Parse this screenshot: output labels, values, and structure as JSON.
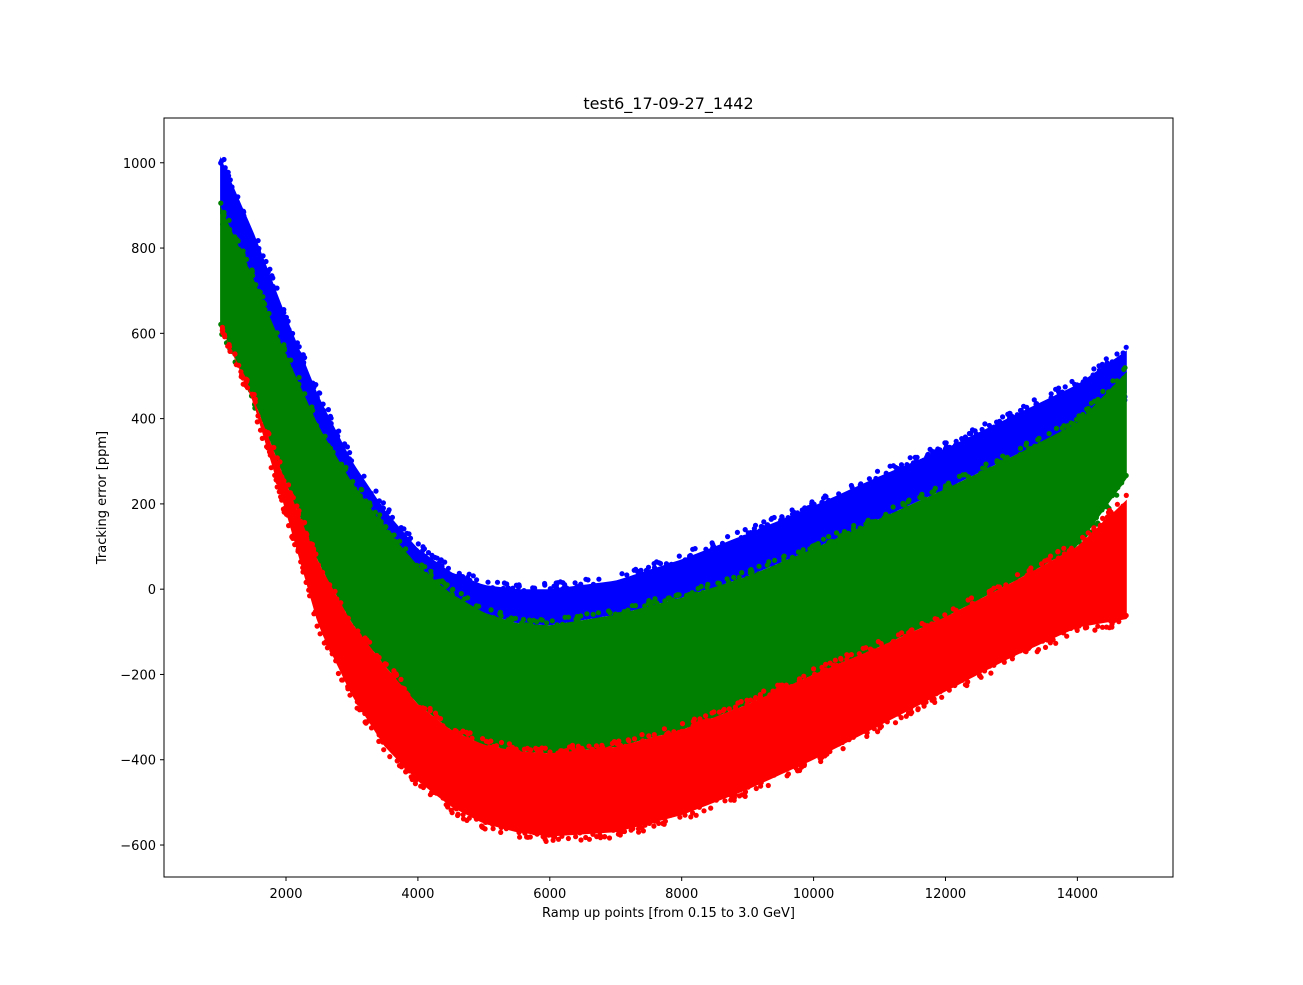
{
  "chart_data": {
    "type": "scatter",
    "title": "test6_17-09-27_1442",
    "xlabel": "Ramp up points [from 0.15 to 3.0 GeV]",
    "ylabel": "Tracking error [ppm]",
    "xlim": [
      150,
      15450
    ],
    "ylim": [
      -675,
      1105
    ],
    "x_ticks": [
      2000,
      4000,
      6000,
      8000,
      10000,
      12000,
      14000
    ],
    "y_ticks": [
      -600,
      -400,
      -200,
      0,
      200,
      400,
      600,
      800,
      1000
    ],
    "y_tick_labels": [
      "−600",
      "−400",
      "−200",
      "0",
      "200",
      "400",
      "600",
      "800",
      "1000"
    ],
    "grid": false,
    "x_range_of_points": [
      1000,
      14750
    ],
    "series": [
      {
        "color": "#0000ff",
        "upper": {
          "x": [
            1000,
            1500,
            2000,
            2500,
            3000,
            3500,
            4000,
            4500,
            5000,
            5500,
            6000,
            7000,
            8000,
            9000,
            10000,
            11000,
            12000,
            13000,
            14000,
            14750
          ],
          "y": [
            1015,
            840,
            640,
            450,
            300,
            185,
            95,
            40,
            10,
            0,
            0,
            20,
            70,
            130,
            195,
            265,
            330,
            405,
            480,
            560
          ]
        },
        "lower": {
          "x": [
            1000,
            1500,
            2000,
            2500,
            3000,
            3500,
            4000,
            4500,
            5000,
            5500,
            6000,
            7000,
            8000,
            9000,
            10000,
            11000,
            12000,
            13000,
            14000,
            14750
          ],
          "y": [
            880,
            720,
            545,
            370,
            240,
            135,
            50,
            -15,
            -55,
            -80,
            -85,
            -60,
            -20,
            30,
            95,
            165,
            235,
            310,
            385,
            460
          ]
        }
      },
      {
        "color": "#008000",
        "upper": {
          "x": [
            1000,
            1500,
            2000,
            2500,
            3000,
            3500,
            4000,
            4500,
            5000,
            5500,
            6000,
            7000,
            8000,
            9000,
            10000,
            11000,
            12000,
            13000,
            14000,
            14750
          ],
          "y": [
            900,
            730,
            550,
            380,
            250,
            145,
            55,
            -10,
            -55,
            -80,
            -85,
            -60,
            -20,
            30,
            95,
            165,
            235,
            310,
            390,
            510
          ]
        },
        "lower": {
          "x": [
            1000,
            1500,
            2000,
            2500,
            3000,
            3500,
            4000,
            4500,
            5000,
            5500,
            6000,
            7000,
            8000,
            9000,
            10000,
            11000,
            12000,
            13000,
            14000,
            14750
          ],
          "y": [
            620,
            450,
            250,
            60,
            -80,
            -180,
            -270,
            -330,
            -365,
            -380,
            -385,
            -370,
            -330,
            -270,
            -200,
            -135,
            -65,
            15,
            100,
            260
          ]
        }
      },
      {
        "color": "#ff0000",
        "upper": {
          "x": [
            1000,
            1500,
            2000,
            2500,
            3000,
            3500,
            4000,
            4500,
            5000,
            5500,
            6000,
            7000,
            8000,
            9000,
            10000,
            11000,
            12000,
            13000,
            14000,
            14750
          ],
          "y": [
            620,
            450,
            250,
            60,
            -80,
            -180,
            -270,
            -330,
            -365,
            -380,
            -385,
            -370,
            -330,
            -270,
            -200,
            -135,
            -65,
            15,
            100,
            210
          ]
        },
        "lower": {
          "x": [
            1000,
            1500,
            2000,
            2500,
            3000,
            3500,
            4000,
            4500,
            5000,
            5500,
            6000,
            7000,
            8000,
            9000,
            10000,
            11000,
            12000,
            13000,
            14000,
            14750
          ],
          "y": [
            620,
            440,
            180,
            -90,
            -250,
            -370,
            -450,
            -510,
            -550,
            -570,
            -580,
            -570,
            -530,
            -470,
            -400,
            -320,
            -240,
            -160,
            -90,
            -70
          ]
        }
      }
    ]
  }
}
